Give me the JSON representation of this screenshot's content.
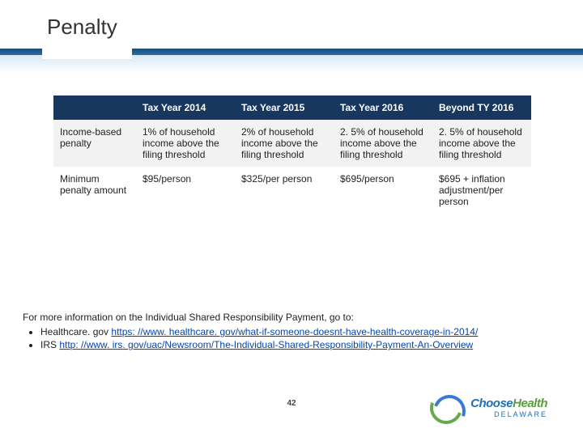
{
  "title": "Penalty",
  "table": {
    "columns": [
      "",
      "Tax Year 2014",
      "Tax Year 2015",
      "Tax Year 2016",
      "Beyond TY 2016"
    ],
    "rows": [
      {
        "label": "Income-based penalty",
        "cells": [
          "1% of household income above the filing threshold",
          "2% of household income above the filing threshold",
          "2. 5% of household income above the filing threshold",
          "2. 5% of household income above the filing threshold"
        ]
      },
      {
        "label": "Minimum penalty amount",
        "cells": [
          "$95/person",
          "$325/per person",
          "$695/person",
          "$695 + inflation adjustment/per person"
        ]
      }
    ],
    "header_bg": "#17375e",
    "header_color": "#ffffff",
    "row_alt_bg": "#f2f2f2",
    "font_size": 12
  },
  "footnote": {
    "intro": "For more information on the Individual Shared Responsibility Payment, go to:",
    "items": [
      {
        "prefix": "Healthcare. gov ",
        "link_text": "https: //www. healthcare. gov/what-if-someone-doesnt-have-health-coverage-in-2014/"
      },
      {
        "prefix": "IRS ",
        "link_text": "http: //www. irs. gov/uac/Newsroom/The-Individual-Shared-Responsibility-Payment-An-Overview"
      }
    ]
  },
  "page_number": "42",
  "logo": {
    "line1a": "Choose",
    "line1b": "Health",
    "line2": "DELAWARE",
    "swoosh_green": "#6aa84f",
    "swoosh_blue": "#3c78d8"
  }
}
